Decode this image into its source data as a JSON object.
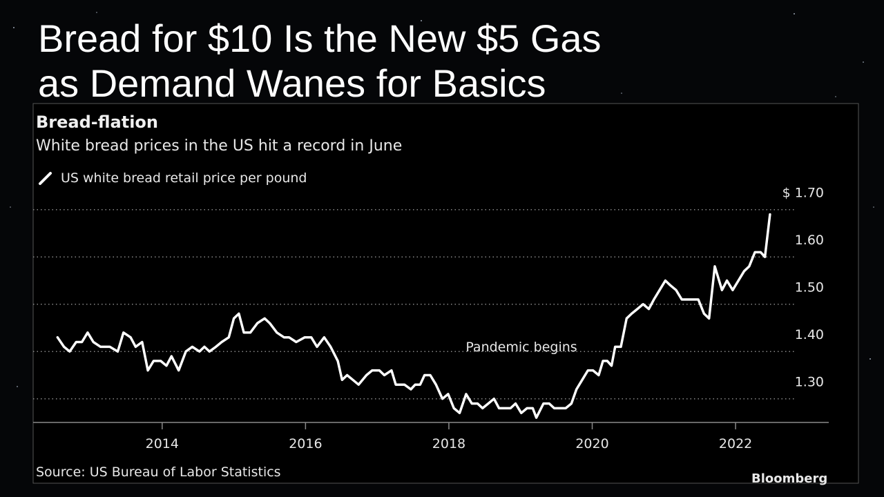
{
  "headline": {
    "lines": [
      "Bread for $10 Is the New $5 Gas",
      "as Demand Wanes for Basics"
    ]
  },
  "chart_data": {
    "type": "line",
    "title": "Bread-flation",
    "subtitle": "White bread prices in the US hit a record in June",
    "source": "Source: US Bureau of Labor Statistics",
    "brand": "Bloomberg",
    "annotation": "Pandemic begins",
    "grid": true,
    "xlim": [
      2012.2,
      2023.3
    ],
    "xticks": [
      2014,
      2016,
      2018,
      2020,
      2022
    ],
    "ylim": [
      1.25,
      1.72
    ],
    "yticks": [
      {
        "value": 1.3,
        "label": "1.30"
      },
      {
        "value": 1.4,
        "label": "1.40"
      },
      {
        "value": 1.5,
        "label": "1.50"
      },
      {
        "value": 1.6,
        "label": "1.60"
      },
      {
        "value": 1.7,
        "label": "$ 1.70"
      }
    ],
    "x": [
      2012.54,
      2012.63,
      2012.71,
      2012.8,
      2012.88,
      2012.96,
      2013.04,
      2013.14,
      2013.27,
      2013.38,
      2013.46,
      2013.56,
      2013.63,
      2013.72,
      2013.8,
      2013.88,
      2013.98,
      2014.06,
      2014.13,
      2014.23,
      2014.33,
      2014.42,
      2014.52,
      2014.59,
      2014.66,
      2014.75,
      2014.83,
      2014.93,
      2015.0,
      2015.07,
      2015.14,
      2015.23,
      2015.33,
      2015.43,
      2015.5,
      2015.6,
      2015.7,
      2015.77,
      2015.87,
      2015.99,
      2016.08,
      2016.16,
      2016.26,
      2016.35,
      2016.45,
      2016.51,
      2016.58,
      2016.66,
      2016.74,
      2016.85,
      2016.93,
      2017.03,
      2017.1,
      2017.2,
      2017.26,
      2017.38,
      2017.47,
      2017.53,
      2017.6,
      2017.66,
      2017.74,
      2017.82,
      2017.91,
      2017.99,
      2018.07,
      2018.15,
      2018.24,
      2018.32,
      2018.4,
      2018.47,
      2018.55,
      2018.63,
      2018.7,
      2018.78,
      2018.86,
      2018.93,
      2019.01,
      2019.09,
      2019.17,
      2019.22,
      2019.32,
      2019.4,
      2019.47,
      2019.55,
      2019.63,
      2019.71,
      2019.78,
      2019.86,
      2019.94,
      2020.01,
      2020.09,
      2020.15,
      2020.21,
      2020.27,
      2020.32,
      2020.4,
      2020.48,
      2020.55,
      2020.63,
      2020.71,
      2020.79,
      2020.86,
      2020.94,
      2021.02,
      2021.09,
      2021.17,
      2021.25,
      2021.33,
      2021.4,
      2021.48,
      2021.56,
      2021.63,
      2021.71,
      2021.81,
      2021.88,
      2021.96,
      2022.04,
      2022.12,
      2022.19,
      2022.27,
      2022.35,
      2022.41,
      2022.48
    ],
    "series": [
      {
        "name": "US white bread retail price per pound",
        "color": "#ffffff",
        "values": [
          1.43,
          1.41,
          1.4,
          1.42,
          1.42,
          1.44,
          1.42,
          1.41,
          1.41,
          1.4,
          1.44,
          1.43,
          1.41,
          1.42,
          1.36,
          1.38,
          1.38,
          1.37,
          1.39,
          1.36,
          1.4,
          1.41,
          1.4,
          1.41,
          1.4,
          1.41,
          1.42,
          1.43,
          1.47,
          1.48,
          1.44,
          1.44,
          1.46,
          1.47,
          1.46,
          1.44,
          1.43,
          1.43,
          1.42,
          1.43,
          1.43,
          1.41,
          1.43,
          1.41,
          1.38,
          1.34,
          1.35,
          1.34,
          1.33,
          1.35,
          1.36,
          1.36,
          1.35,
          1.36,
          1.33,
          1.33,
          1.32,
          1.33,
          1.33,
          1.35,
          1.35,
          1.33,
          1.3,
          1.31,
          1.28,
          1.27,
          1.31,
          1.29,
          1.29,
          1.28,
          1.29,
          1.3,
          1.28,
          1.28,
          1.28,
          1.29,
          1.27,
          1.28,
          1.28,
          1.26,
          1.29,
          1.29,
          1.28,
          1.28,
          1.28,
          1.29,
          1.32,
          1.34,
          1.36,
          1.36,
          1.35,
          1.38,
          1.38,
          1.37,
          1.41,
          1.41,
          1.47,
          1.48,
          1.49,
          1.5,
          1.49,
          1.51,
          1.53,
          1.55,
          1.54,
          1.53,
          1.51,
          1.51,
          1.51,
          1.51,
          1.48,
          1.47,
          1.58,
          1.53,
          1.55,
          1.53,
          1.55,
          1.57,
          1.58,
          1.61,
          1.61,
          1.6,
          1.69
        ]
      }
    ]
  }
}
